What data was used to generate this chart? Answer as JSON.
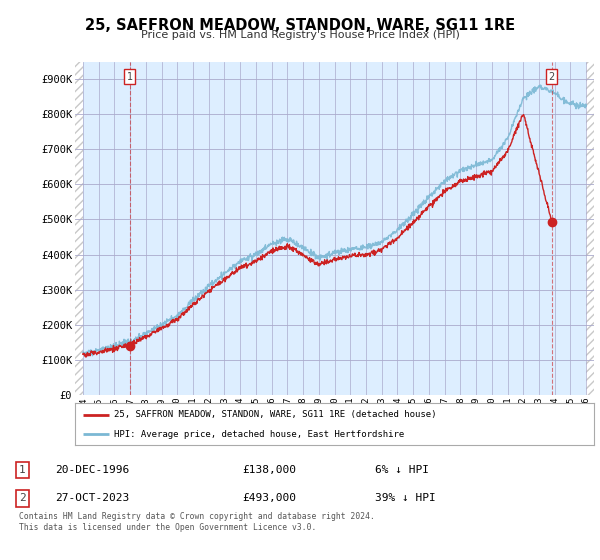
{
  "title": "25, SAFFRON MEADOW, STANDON, WARE, SG11 1RE",
  "subtitle": "Price paid vs. HM Land Registry's House Price Index (HPI)",
  "ylim": [
    0,
    950000
  ],
  "yticks": [
    0,
    100000,
    200000,
    300000,
    400000,
    500000,
    600000,
    700000,
    800000,
    900000
  ],
  "ytick_labels": [
    "£0",
    "£100K",
    "£200K",
    "£300K",
    "£400K",
    "£500K",
    "£600K",
    "£700K",
    "£800K",
    "£900K"
  ],
  "xlim_start": 1993.5,
  "xlim_end": 2026.5,
  "hpi_color": "#7bb8d4",
  "sale_color": "#cc2222",
  "plot_bg": "#ddeeff",
  "hatch_color": "#c8c8c8",
  "grid_color": "#aaaacc",
  "marker1_year": 1996.97,
  "marker1_price": 138000,
  "marker1_label": "1",
  "marker2_year": 2023.82,
  "marker2_price": 493000,
  "marker2_label": "2",
  "legend_line1": "25, SAFFRON MEADOW, STANDON, WARE, SG11 1RE (detached house)",
  "legend_line2": "HPI: Average price, detached house, East Hertfordshire",
  "table_row1_num": "1",
  "table_row1_date": "20-DEC-1996",
  "table_row1_price": "£138,000",
  "table_row1_hpi": "6% ↓ HPI",
  "table_row2_num": "2",
  "table_row2_date": "27-OCT-2023",
  "table_row2_price": "£493,000",
  "table_row2_hpi": "39% ↓ HPI",
  "footer": "Contains HM Land Registry data © Crown copyright and database right 2024.\nThis data is licensed under the Open Government Licence v3.0.",
  "background_color": "#ffffff"
}
